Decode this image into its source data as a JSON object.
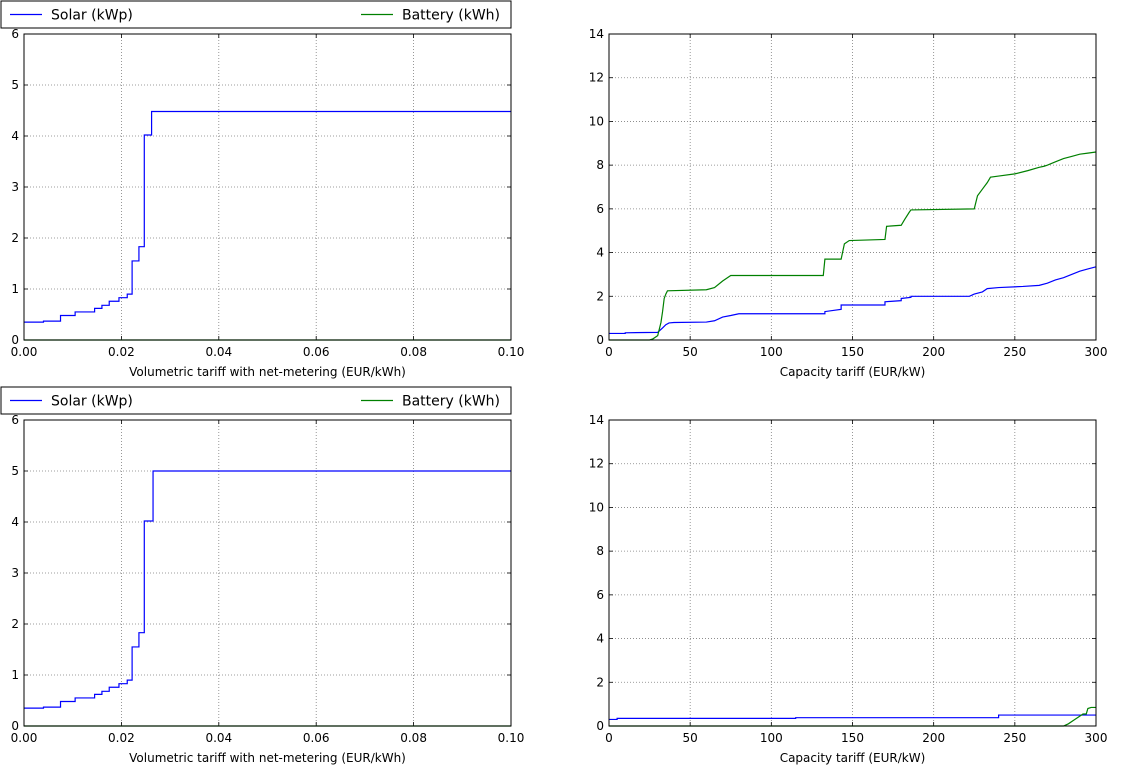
{
  "colors": {
    "solar": "#0000ff",
    "battery": "#008000",
    "grid": "#7f7f7f"
  },
  "chart_data": [
    {
      "type": "line",
      "xlabel": "Volumetric tariff with net-metering (EUR/kWh)",
      "ylabel": "",
      "xlim": [
        0,
        0.1
      ],
      "ylim": [
        0,
        6
      ],
      "xticks": [
        "0.00",
        "0.02",
        "0.04",
        "0.06",
        "0.08",
        "0.10"
      ],
      "yticks": [
        "0",
        "1",
        "2",
        "3",
        "4",
        "5",
        "6"
      ],
      "grid": true,
      "legend": {
        "placement": "above",
        "entries": [
          "Solar (kWp)",
          "Battery (kWh)"
        ]
      },
      "series": [
        {
          "name": "Solar (kWp)",
          "color": "#0000ff",
          "x": [
            0,
            0.004,
            0.004,
            0.0075,
            0.0075,
            0.0105,
            0.0105,
            0.0145,
            0.0145,
            0.016,
            0.016,
            0.0175,
            0.0175,
            0.0195,
            0.0195,
            0.0212,
            0.0212,
            0.0222,
            0.0222,
            0.0236,
            0.0236,
            0.0247,
            0.0247,
            0.0262,
            0.0262,
            0.1
          ],
          "y": [
            0.35,
            0.35,
            0.37,
            0.37,
            0.48,
            0.48,
            0.55,
            0.55,
            0.62,
            0.62,
            0.68,
            0.68,
            0.76,
            0.76,
            0.83,
            0.83,
            0.9,
            0.9,
            1.55,
            1.55,
            1.83,
            1.83,
            4.02,
            4.02,
            4.48,
            4.48
          ]
        },
        {
          "name": "Battery (kWh)",
          "color": "#008000",
          "x": [
            0,
            0.1
          ],
          "y": [
            0,
            0
          ]
        }
      ]
    },
    {
      "type": "line",
      "xlabel": "Capacity tariff (EUR/kW)",
      "ylabel": "",
      "xlim": [
        0,
        300
      ],
      "ylim": [
        0,
        14
      ],
      "xticks": [
        "0",
        "50",
        "100",
        "150",
        "200",
        "250",
        "300"
      ],
      "yticks": [
        "0",
        "2",
        "4",
        "6",
        "8",
        "10",
        "12",
        "14"
      ],
      "grid": true,
      "series": [
        {
          "name": "Solar (kWp)",
          "color": "#0000ff",
          "x": [
            0,
            10,
            10,
            30,
            33,
            35,
            37,
            40,
            60,
            65,
            70,
            75,
            80,
            133,
            133,
            143,
            143,
            170,
            170,
            180,
            180,
            186,
            186,
            222,
            225,
            230,
            233,
            240,
            255,
            265,
            270,
            275,
            280,
            285,
            290,
            295,
            300
          ],
          "y": [
            0.3,
            0.3,
            0.33,
            0.35,
            0.55,
            0.7,
            0.78,
            0.8,
            0.82,
            0.88,
            1.05,
            1.12,
            1.2,
            1.2,
            1.3,
            1.4,
            1.6,
            1.6,
            1.75,
            1.8,
            1.9,
            1.95,
            2.0,
            2.0,
            2.1,
            2.2,
            2.35,
            2.4,
            2.45,
            2.5,
            2.6,
            2.75,
            2.85,
            3.0,
            3.15,
            3.25,
            3.35
          ]
        },
        {
          "name": "Battery (kWh)",
          "color": "#008000",
          "x": [
            0,
            25,
            27,
            30,
            32,
            33,
            34,
            35,
            36,
            60,
            65,
            70,
            75,
            132,
            133,
            143,
            145,
            148,
            170,
            171,
            180,
            182,
            185,
            186,
            225,
            227,
            230,
            233,
            235,
            240,
            250,
            258,
            265,
            268,
            270,
            275,
            280,
            285,
            290,
            295,
            300
          ],
          "y": [
            0,
            0,
            0.05,
            0.2,
            0.8,
            1.3,
            1.9,
            2.1,
            2.25,
            2.3,
            2.4,
            2.7,
            2.95,
            2.95,
            3.7,
            3.7,
            4.4,
            4.55,
            4.6,
            5.2,
            5.25,
            5.5,
            5.85,
            5.95,
            6.0,
            6.6,
            6.9,
            7.2,
            7.45,
            7.5,
            7.6,
            7.75,
            7.9,
            7.95,
            8.0,
            8.15,
            8.3,
            8.4,
            8.5,
            8.55,
            8.6
          ]
        }
      ]
    },
    {
      "type": "line",
      "xlabel": "Volumetric tariff with net-metering (EUR/kWh)",
      "ylabel": "",
      "xlim": [
        0,
        0.1
      ],
      "ylim": [
        0,
        6
      ],
      "xticks": [
        "0.00",
        "0.02",
        "0.04",
        "0.06",
        "0.08",
        "0.10"
      ],
      "yticks": [
        "0",
        "1",
        "2",
        "3",
        "4",
        "5",
        "6"
      ],
      "grid": true,
      "legend": {
        "placement": "above",
        "entries": [
          "Solar (kWp)",
          "Battery (kWh)"
        ]
      },
      "series": [
        {
          "name": "Solar (kWp)",
          "color": "#0000ff",
          "x": [
            0,
            0.004,
            0.004,
            0.0075,
            0.0075,
            0.0105,
            0.0105,
            0.0145,
            0.0145,
            0.016,
            0.016,
            0.0175,
            0.0175,
            0.0195,
            0.0195,
            0.0212,
            0.0212,
            0.0222,
            0.0222,
            0.0236,
            0.0236,
            0.0247,
            0.0247,
            0.0265,
            0.0265,
            0.1
          ],
          "y": [
            0.35,
            0.35,
            0.37,
            0.37,
            0.48,
            0.48,
            0.55,
            0.55,
            0.62,
            0.62,
            0.68,
            0.68,
            0.76,
            0.76,
            0.83,
            0.83,
            0.9,
            0.9,
            1.55,
            1.55,
            1.83,
            1.83,
            4.02,
            4.02,
            5.0,
            5.0
          ]
        },
        {
          "name": "Battery (kWh)",
          "color": "#008000",
          "x": [
            0,
            0.1
          ],
          "y": [
            0,
            0
          ]
        }
      ]
    },
    {
      "type": "line",
      "xlabel": "Capacity tariff (EUR/kW)",
      "ylabel": "",
      "xlim": [
        0,
        300
      ],
      "ylim": [
        0,
        14
      ],
      "xticks": [
        "0",
        "50",
        "100",
        "150",
        "200",
        "250",
        "300"
      ],
      "yticks": [
        "0",
        "2",
        "4",
        "6",
        "8",
        "10",
        "12",
        "14"
      ],
      "grid": true,
      "series": [
        {
          "name": "Solar (kWp)",
          "color": "#0000ff",
          "x": [
            0,
            5,
            5,
            115,
            115,
            240,
            240,
            300
          ],
          "y": [
            0.3,
            0.3,
            0.35,
            0.35,
            0.38,
            0.38,
            0.5,
            0.5
          ]
        },
        {
          "name": "Battery (kWh)",
          "color": "#008000",
          "x": [
            0,
            280,
            283,
            286,
            289,
            292,
            294,
            295,
            297,
            300
          ],
          "y": [
            0,
            0,
            0.1,
            0.25,
            0.4,
            0.55,
            0.55,
            0.8,
            0.85,
            0.85
          ]
        }
      ]
    }
  ]
}
